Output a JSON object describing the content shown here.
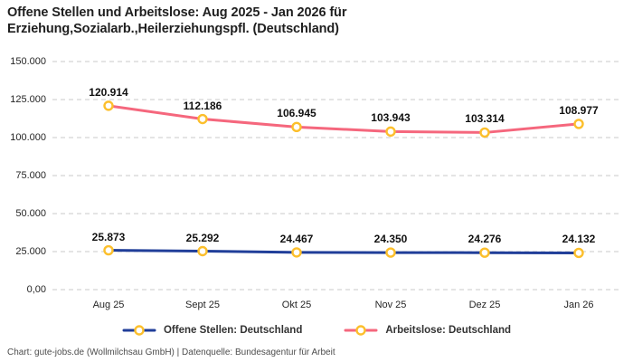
{
  "title": "Offene Stellen und Arbeitslose: Aug 2025 - Jan 2026 für Erziehung,Sozialarb.,Heilerziehungspfl. (Deutschland)",
  "footer": "Chart: gute-jobs.de (Wollmilchsau GmbH) | Datenquelle: Bundesagentur für Arbeit",
  "colors": {
    "offene_stellen_line": "#203e99",
    "arbeitslose_line": "#f5677d",
    "marker_ring": "#fcbf2c",
    "marker_fill": "#ffffff",
    "gridline": "#c8c8c8",
    "title_text": "#1f1f1f",
    "tick_text": "#262626",
    "footer_text": "#4d4d4d"
  },
  "chart_data": {
    "type": "line",
    "categories": [
      "Aug 25",
      "Sept 25",
      "Okt 25",
      "Nov 25",
      "Dez 25",
      "Jan 26"
    ],
    "series": [
      {
        "id": "offene-stellen",
        "name": "Offene Stellen: Deutschland",
        "color": "#203e99",
        "values": [
          25873,
          25292,
          24467,
          24350,
          24276,
          24132
        ],
        "labels": [
          "25.873",
          "25.292",
          "24.467",
          "24.350",
          "24.276",
          "24.132"
        ]
      },
      {
        "id": "arbeitslose",
        "name": "Arbeitslose: Deutschland",
        "color": "#f5677d",
        "values": [
          120914,
          112186,
          106945,
          103943,
          103314,
          108977
        ],
        "labels": [
          "120.914",
          "112.186",
          "106.945",
          "103.943",
          "103.314",
          "108.977"
        ]
      }
    ],
    "title": "Offene Stellen und Arbeitslose: Aug 2025 - Jan 2026 für Erziehung,Sozialarb.,Heilerziehungspfl. (Deutschland)",
    "xlabel": "",
    "ylabel": "",
    "ylim": [
      0,
      150000
    ],
    "yticks": [
      {
        "value": 0,
        "label": "0,00"
      },
      {
        "value": 25000,
        "label": "25.000"
      },
      {
        "value": 50000,
        "label": "50.000"
      },
      {
        "value": 75000,
        "label": "75.000"
      },
      {
        "value": 100000,
        "label": "100.000"
      },
      {
        "value": 125000,
        "label": "125.000"
      },
      {
        "value": 150000,
        "label": "150.000"
      }
    ],
    "grid": true,
    "legend_position": "bottom"
  }
}
